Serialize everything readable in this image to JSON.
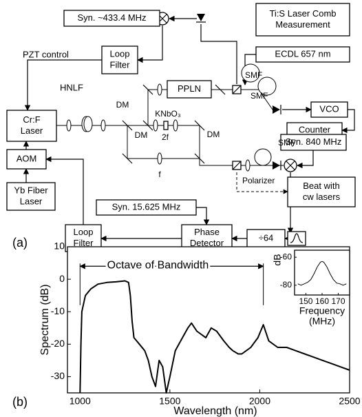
{
  "diagram": {
    "boxes": [
      [
        "Syn. ~433.4 MHz"
      ],
      [
        "Ti:S Laser Comb",
        "Measurement"
      ],
      [
        "Loop",
        "Filter"
      ],
      [
        "ECDL 657 nm"
      ],
      [
        "PPLN"
      ],
      [
        "VCO"
      ],
      [
        "Counter"
      ],
      [
        "Cr:F",
        "Laser"
      ],
      [
        "AOM"
      ],
      [
        "Yb Fiber",
        "Laser"
      ],
      [
        "Syn. 840 MHz"
      ],
      [
        "Beat with",
        "cw lasers"
      ],
      [
        "Syn. 15.625 MHz"
      ],
      [
        "Loop",
        "Filter"
      ],
      [
        "Phase",
        "Detector"
      ],
      [
        "÷64"
      ]
    ],
    "labels": [
      "PZT control",
      "HNLF",
      "SMF",
      "SMF",
      "DM",
      "DM",
      "KNbO₃",
      "2f",
      "DM",
      "f",
      "SMF",
      "Polarizer",
      "(a)",
      "(b)"
    ]
  },
  "chart_data": [
    {
      "type": "line",
      "x_label": "Wavelength (nm)",
      "y_label": "Spectrum (dB)",
      "xlim": [
        930,
        2500
      ],
      "ylim": [
        -35,
        10
      ],
      "xticks": [
        1000,
        1500,
        2000,
        2500
      ],
      "yticks": [
        10,
        0,
        -10,
        -20,
        -30
      ],
      "annotation": {
        "text": "Octave of Bandwidth",
        "x": [
          1000,
          2020
        ],
        "y": 4
      },
      "series": [
        {
          "color": "#000000",
          "x": [
            1000,
            1005,
            1010,
            1030,
            1060,
            1100,
            1150,
            1200,
            1250,
            1270,
            1280,
            1290,
            1300,
            1330,
            1360,
            1380,
            1400,
            1420,
            1440,
            1460,
            1480,
            1500,
            1530,
            1560,
            1600,
            1620,
            1650,
            1700,
            1730,
            1760,
            1800,
            1830,
            1850,
            1880,
            1900,
            1950,
            1990,
            2020,
            2050,
            2100,
            2150,
            2200,
            2250,
            2300,
            2350,
            2400,
            2450,
            2500
          ],
          "values": [
            -35,
            -20,
            -10,
            -5,
            -3,
            -1.5,
            -1,
            -0.8,
            -0.5,
            -1,
            -5,
            -13,
            -18,
            -20,
            -22,
            -25,
            -30,
            -33,
            -25,
            -27,
            -35,
            -30,
            -22,
            -19,
            -15,
            -13.5,
            -16,
            -18,
            -15,
            -16,
            -19,
            -21,
            -22,
            -23,
            -23,
            -21,
            -18,
            -14,
            -19,
            -21,
            -21,
            -22,
            -23,
            -24,
            -25,
            -26,
            -27,
            -28
          ]
        }
      ]
    },
    {
      "type": "line",
      "x_label": [
        "Frequency",
        "(MHz)"
      ],
      "y_label": "dB",
      "xlim": [
        143,
        177
      ],
      "ylim": [
        -87,
        -55
      ],
      "xticks": [
        150,
        160,
        170
      ],
      "yticks": [
        -60,
        -80
      ],
      "series": [
        {
          "color": "#000000",
          "x": [
            145,
            147,
            149,
            151,
            153,
            155,
            157,
            159,
            160,
            161,
            163,
            165,
            167,
            169,
            171,
            173,
            175
          ],
          "values": [
            -79,
            -80,
            -79,
            -78,
            -76,
            -72,
            -67,
            -63.5,
            -63,
            -63.5,
            -67,
            -72,
            -76,
            -78.5,
            -79,
            -80,
            -79
          ]
        }
      ]
    }
  ]
}
